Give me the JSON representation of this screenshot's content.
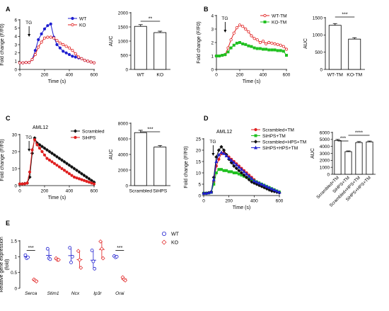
{
  "panel_letters": [
    "A",
    "B",
    "C",
    "D",
    "E"
  ],
  "stimulus_label": "TG",
  "significance": {
    "A": "**",
    "B": "***",
    "C": "***",
    "D1": "***",
    "D2": "****",
    "E": "***"
  },
  "chart_data": [
    {
      "id": "A-line",
      "type": "line",
      "panel": "A",
      "xlabel": "Time (s)",
      "ylabel": "Fold change (F/F0)",
      "xlim": [
        0,
        600
      ],
      "ylim": [
        0,
        6
      ],
      "xticks": [
        0,
        200,
        400,
        600
      ],
      "yticks": [
        0,
        1,
        2,
        3,
        4,
        5,
        6
      ],
      "legend_position": "top-right",
      "series": [
        {
          "name": "WT",
          "color": "#1f1fd0",
          "marker": "circle",
          "x": [
            0,
            25,
            50,
            75,
            100,
            125,
            150,
            175,
            200,
            225,
            250,
            275,
            300,
            325,
            350,
            375,
            400,
            425,
            450,
            475,
            500,
            525,
            550,
            575,
            600
          ],
          "y": [
            0.8,
            0.8,
            0.85,
            0.85,
            1.2,
            2.3,
            3.6,
            4.3,
            4.9,
            5.3,
            5.5,
            3.9,
            3.0,
            2.6,
            2.2,
            2.0,
            1.8,
            1.6,
            1.5,
            1.4,
            1.3,
            1.1,
            1.0,
            0.9,
            0.8
          ]
        },
        {
          "name": "KO",
          "color": "#e02020",
          "marker": "circle-open",
          "x": [
            0,
            25,
            50,
            75,
            100,
            125,
            150,
            175,
            200,
            225,
            250,
            275,
            300,
            325,
            350,
            375,
            400,
            425,
            450,
            475,
            500,
            525,
            550,
            575,
            600
          ],
          "y": [
            0.8,
            0.8,
            0.85,
            0.85,
            1.2,
            1.8,
            2.7,
            3.3,
            3.8,
            3.9,
            3.9,
            3.8,
            3.5,
            3.2,
            3.0,
            2.8,
            2.6,
            2.3,
            1.9,
            1.5,
            1.3,
            1.1,
            1.0,
            0.9,
            0.8
          ]
        }
      ]
    },
    {
      "id": "A-bar",
      "type": "bar",
      "panel": "A",
      "ylabel": "AUC",
      "ylim": [
        0,
        2000
      ],
      "yticks": [
        0,
        500,
        1000,
        1500,
        2000
      ],
      "categories": [
        "WT",
        "KO"
      ],
      "values": [
        1520,
        1300
      ],
      "errors": [
        60,
        50
      ]
    },
    {
      "id": "B-line",
      "type": "line",
      "panel": "B",
      "xlabel": "Time (s)",
      "ylabel": "Fold change (F/F0)",
      "xlim": [
        0,
        600
      ],
      "ylim": [
        0,
        4
      ],
      "xticks": [
        0,
        200,
        400,
        600
      ],
      "yticks": [
        0,
        1,
        2,
        3,
        4
      ],
      "legend_position": "top-right",
      "series": [
        {
          "name": "WT-TM",
          "color": "#e02020",
          "marker": "circle-open",
          "x": [
            0,
            25,
            50,
            75,
            100,
            125,
            150,
            175,
            200,
            225,
            250,
            275,
            300,
            325,
            350,
            375,
            400,
            425,
            450,
            475,
            500,
            525,
            550,
            575,
            600
          ],
          "y": [
            1.0,
            1.0,
            1.05,
            1.1,
            1.6,
            2.2,
            2.7,
            3.1,
            3.3,
            3.2,
            3.0,
            2.8,
            2.5,
            2.3,
            2.2,
            2.0,
            2.1,
            1.9,
            2.0,
            1.95,
            1.9,
            1.85,
            1.8,
            1.7,
            1.5
          ]
        },
        {
          "name": "KO-TM",
          "color": "#20c020",
          "marker": "square",
          "x": [
            0,
            25,
            50,
            75,
            100,
            125,
            150,
            175,
            200,
            225,
            250,
            275,
            300,
            325,
            350,
            375,
            400,
            425,
            450,
            475,
            500,
            525,
            550,
            575,
            600
          ],
          "y": [
            1.0,
            1.0,
            1.05,
            1.1,
            1.3,
            1.6,
            1.8,
            1.95,
            2.0,
            1.9,
            1.85,
            1.75,
            1.7,
            1.6,
            1.55,
            1.55,
            1.5,
            1.5,
            1.45,
            1.45,
            1.45,
            1.4,
            1.4,
            1.35,
            1.05
          ]
        }
      ]
    },
    {
      "id": "B-bar",
      "type": "bar",
      "panel": "B",
      "ylabel": "AUC",
      "ylim": [
        0,
        1500
      ],
      "yticks": [
        0,
        500,
        1000,
        1500
      ],
      "categories": [
        "WT-TM",
        "KO-TM"
      ],
      "values": [
        1280,
        880
      ],
      "errors": [
        50,
        40
      ]
    },
    {
      "id": "C-line",
      "type": "line",
      "panel": "C",
      "title": "AML12",
      "xlabel": "Time (s)",
      "ylabel": "Fold change (F/F0)",
      "xlim": [
        0,
        600
      ],
      "ylim": [
        0,
        30
      ],
      "xticks": [
        0,
        200,
        400,
        600
      ],
      "yticks": [
        0,
        10,
        20,
        30
      ],
      "legend_position": "top-right",
      "series": [
        {
          "name": "Scrambled",
          "color": "#111111",
          "marker": "diamond",
          "x": [
            0,
            20,
            40,
            60,
            80,
            100,
            120,
            140,
            160,
            180,
            200,
            220,
            240,
            260,
            280,
            300,
            320,
            340,
            360,
            380,
            400,
            420,
            440,
            460,
            480,
            500,
            520,
            540,
            560,
            580,
            600
          ],
          "y": [
            1,
            1,
            1.2,
            1.5,
            5,
            19,
            28,
            25,
            24,
            23,
            22,
            21,
            20,
            19,
            18,
            17,
            16,
            15,
            14,
            13,
            12,
            11,
            10,
            9,
            8,
            7,
            6,
            5,
            4,
            3,
            2
          ]
        },
        {
          "name": "SiHPS",
          "color": "#e02020",
          "marker": "circle",
          "x": [
            0,
            20,
            40,
            60,
            80,
            100,
            120,
            140,
            160,
            180,
            200,
            220,
            240,
            260,
            280,
            300,
            320,
            340,
            360,
            380,
            400,
            420,
            440,
            460,
            480,
            500,
            520,
            540,
            560,
            580,
            600
          ],
          "y": [
            1,
            1,
            1.1,
            1.5,
            8,
            21,
            27,
            24,
            22,
            20,
            18,
            16,
            15,
            14,
            13,
            12,
            11,
            10,
            9,
            8,
            7,
            6,
            5,
            4.5,
            4,
            3.5,
            3,
            2.5,
            2,
            1.5,
            1
          ]
        }
      ]
    },
    {
      "id": "C-bar",
      "type": "bar",
      "panel": "C",
      "ylabel": "AUC",
      "ylim": [
        0,
        8000
      ],
      "yticks": [
        0,
        2000,
        4000,
        6000,
        8000
      ],
      "categories": [
        "Scrambled",
        "SiHPS"
      ],
      "values": [
        6800,
        4950
      ],
      "errors": [
        300,
        200
      ]
    },
    {
      "id": "D-line",
      "type": "line",
      "panel": "D",
      "title": "AML12",
      "xlabel": "Time (s)",
      "ylabel": "Fold change (F/F0)",
      "xlim": [
        0,
        600
      ],
      "ylim": [
        0,
        25
      ],
      "xticks": [
        0,
        200,
        400,
        600
      ],
      "yticks": [
        0,
        5,
        10,
        15,
        20,
        25
      ],
      "legend_position": "top-right",
      "series": [
        {
          "name": "Scrambled+TM",
          "color": "#e02020",
          "marker": "circle",
          "x": [
            0,
            20,
            40,
            60,
            80,
            100,
            120,
            140,
            160,
            180,
            200,
            220,
            240,
            260,
            280,
            300,
            320,
            340,
            360,
            380,
            400,
            420,
            440,
            460,
            480,
            500,
            520,
            540,
            560,
            580,
            600
          ],
          "y": [
            1,
            1,
            1.2,
            1.5,
            6,
            13,
            16,
            18.5,
            19,
            18,
            17,
            16,
            15,
            14,
            13,
            12,
            11,
            10,
            9,
            8,
            7,
            6,
            5.5,
            4.5,
            4,
            3.5,
            3,
            2.5,
            2,
            1.8,
            1.5
          ]
        },
        {
          "name": "SiHPS+TM",
          "color": "#20c020",
          "marker": "square",
          "x": [
            0,
            20,
            40,
            60,
            80,
            100,
            120,
            140,
            160,
            180,
            200,
            220,
            240,
            260,
            280,
            300,
            320,
            340,
            360,
            380,
            400,
            420,
            440,
            460,
            480,
            500,
            520,
            540,
            560,
            580,
            600
          ],
          "y": [
            1,
            1,
            1.1,
            1.4,
            5,
            10,
            11.5,
            11.5,
            11,
            11,
            10.5,
            10.5,
            10,
            10,
            9.5,
            9,
            8.5,
            8,
            7.5,
            7,
            6.5,
            6,
            5.5,
            5,
            4.5,
            4,
            3.5,
            3,
            2.5,
            2,
            1.5
          ]
        },
        {
          "name": "Scrambled+HPS+TM",
          "color": "#111111",
          "marker": "diamond",
          "x": [
            0,
            20,
            40,
            60,
            80,
            100,
            120,
            140,
            160,
            180,
            200,
            220,
            240,
            260,
            280,
            300,
            320,
            340,
            360,
            380,
            400,
            420,
            440,
            460,
            480,
            500,
            520,
            540,
            560,
            580,
            600
          ],
          "y": [
            1,
            1,
            1.2,
            1.6,
            8,
            17,
            20,
            21.5,
            20,
            18,
            16,
            14.5,
            13,
            12,
            11,
            10,
            9,
            8,
            7,
            6,
            5.5,
            5,
            4.5,
            4,
            3.5,
            3,
            2.5,
            2,
            1.8,
            1.5,
            1.2
          ]
        },
        {
          "name": "SiHPS+HPS+TM",
          "color": "#2020d0",
          "marker": "triangle",
          "x": [
            0,
            20,
            40,
            60,
            80,
            100,
            120,
            140,
            160,
            180,
            200,
            220,
            240,
            260,
            280,
            300,
            320,
            340,
            360,
            380,
            400,
            420,
            440,
            460,
            480,
            500,
            520,
            540,
            560,
            580,
            600
          ],
          "y": [
            1,
            1,
            1.2,
            1.5,
            7,
            15,
            18,
            19,
            18.5,
            17.5,
            16.5,
            15.5,
            14.5,
            13.5,
            12.5,
            11.5,
            10.5,
            9.5,
            8.5,
            7.5,
            6.5,
            6,
            5.5,
            5,
            4.5,
            4,
            3.5,
            3,
            2.5,
            2,
            1.5
          ]
        }
      ]
    },
    {
      "id": "D-bar",
      "type": "bar",
      "panel": "D",
      "ylabel": "AUC",
      "ylim": [
        0,
        6000
      ],
      "yticks": [
        0,
        1000,
        2000,
        3000,
        4000,
        5000,
        6000
      ],
      "categories": [
        "Scrambled+TM",
        "SiHPS+TM",
        "Scrambled+HPS+TM",
        "SiHPS+HPS+TM"
      ],
      "values": [
        4850,
        3250,
        4550,
        4650
      ],
      "errors": [
        150,
        100,
        150,
        120
      ]
    },
    {
      "id": "E-dot",
      "type": "scatter",
      "panel": "E",
      "ylabel": "Relative gene expression\n(fold)",
      "ylim": [
        0,
        1.5
      ],
      "yticks": [
        0,
        0.5,
        1.0,
        1.5
      ],
      "categories": [
        "Serca",
        "Stim1",
        "Ncx",
        "Ip3r",
        "Orai"
      ],
      "legend_position": "top-right",
      "series": [
        {
          "name": "WT",
          "color": "#2020d0",
          "marker": "circle-open",
          "values": [
            [
              1.05,
              0.95,
              0.98
            ],
            [
              1.25,
              0.95,
              0.92
            ],
            [
              1.28,
              0.82,
              1.0
            ],
            [
              1.2,
              0.85,
              0.62
            ],
            [
              1.02,
              0.98,
              1.0
            ]
          ]
        },
        {
          "name": "KO",
          "color": "#e02020",
          "marker": "diamond-open",
          "values": [
            [
              0.28,
              0.25,
              0.22
            ],
            [
              0.95,
              0.9,
              0.9
            ],
            [
              1.18,
              0.9,
              0.65
            ],
            [
              1.48,
              1.25,
              0.95
            ],
            [
              0.35,
              0.28,
              0.25
            ]
          ]
        }
      ]
    }
  ]
}
